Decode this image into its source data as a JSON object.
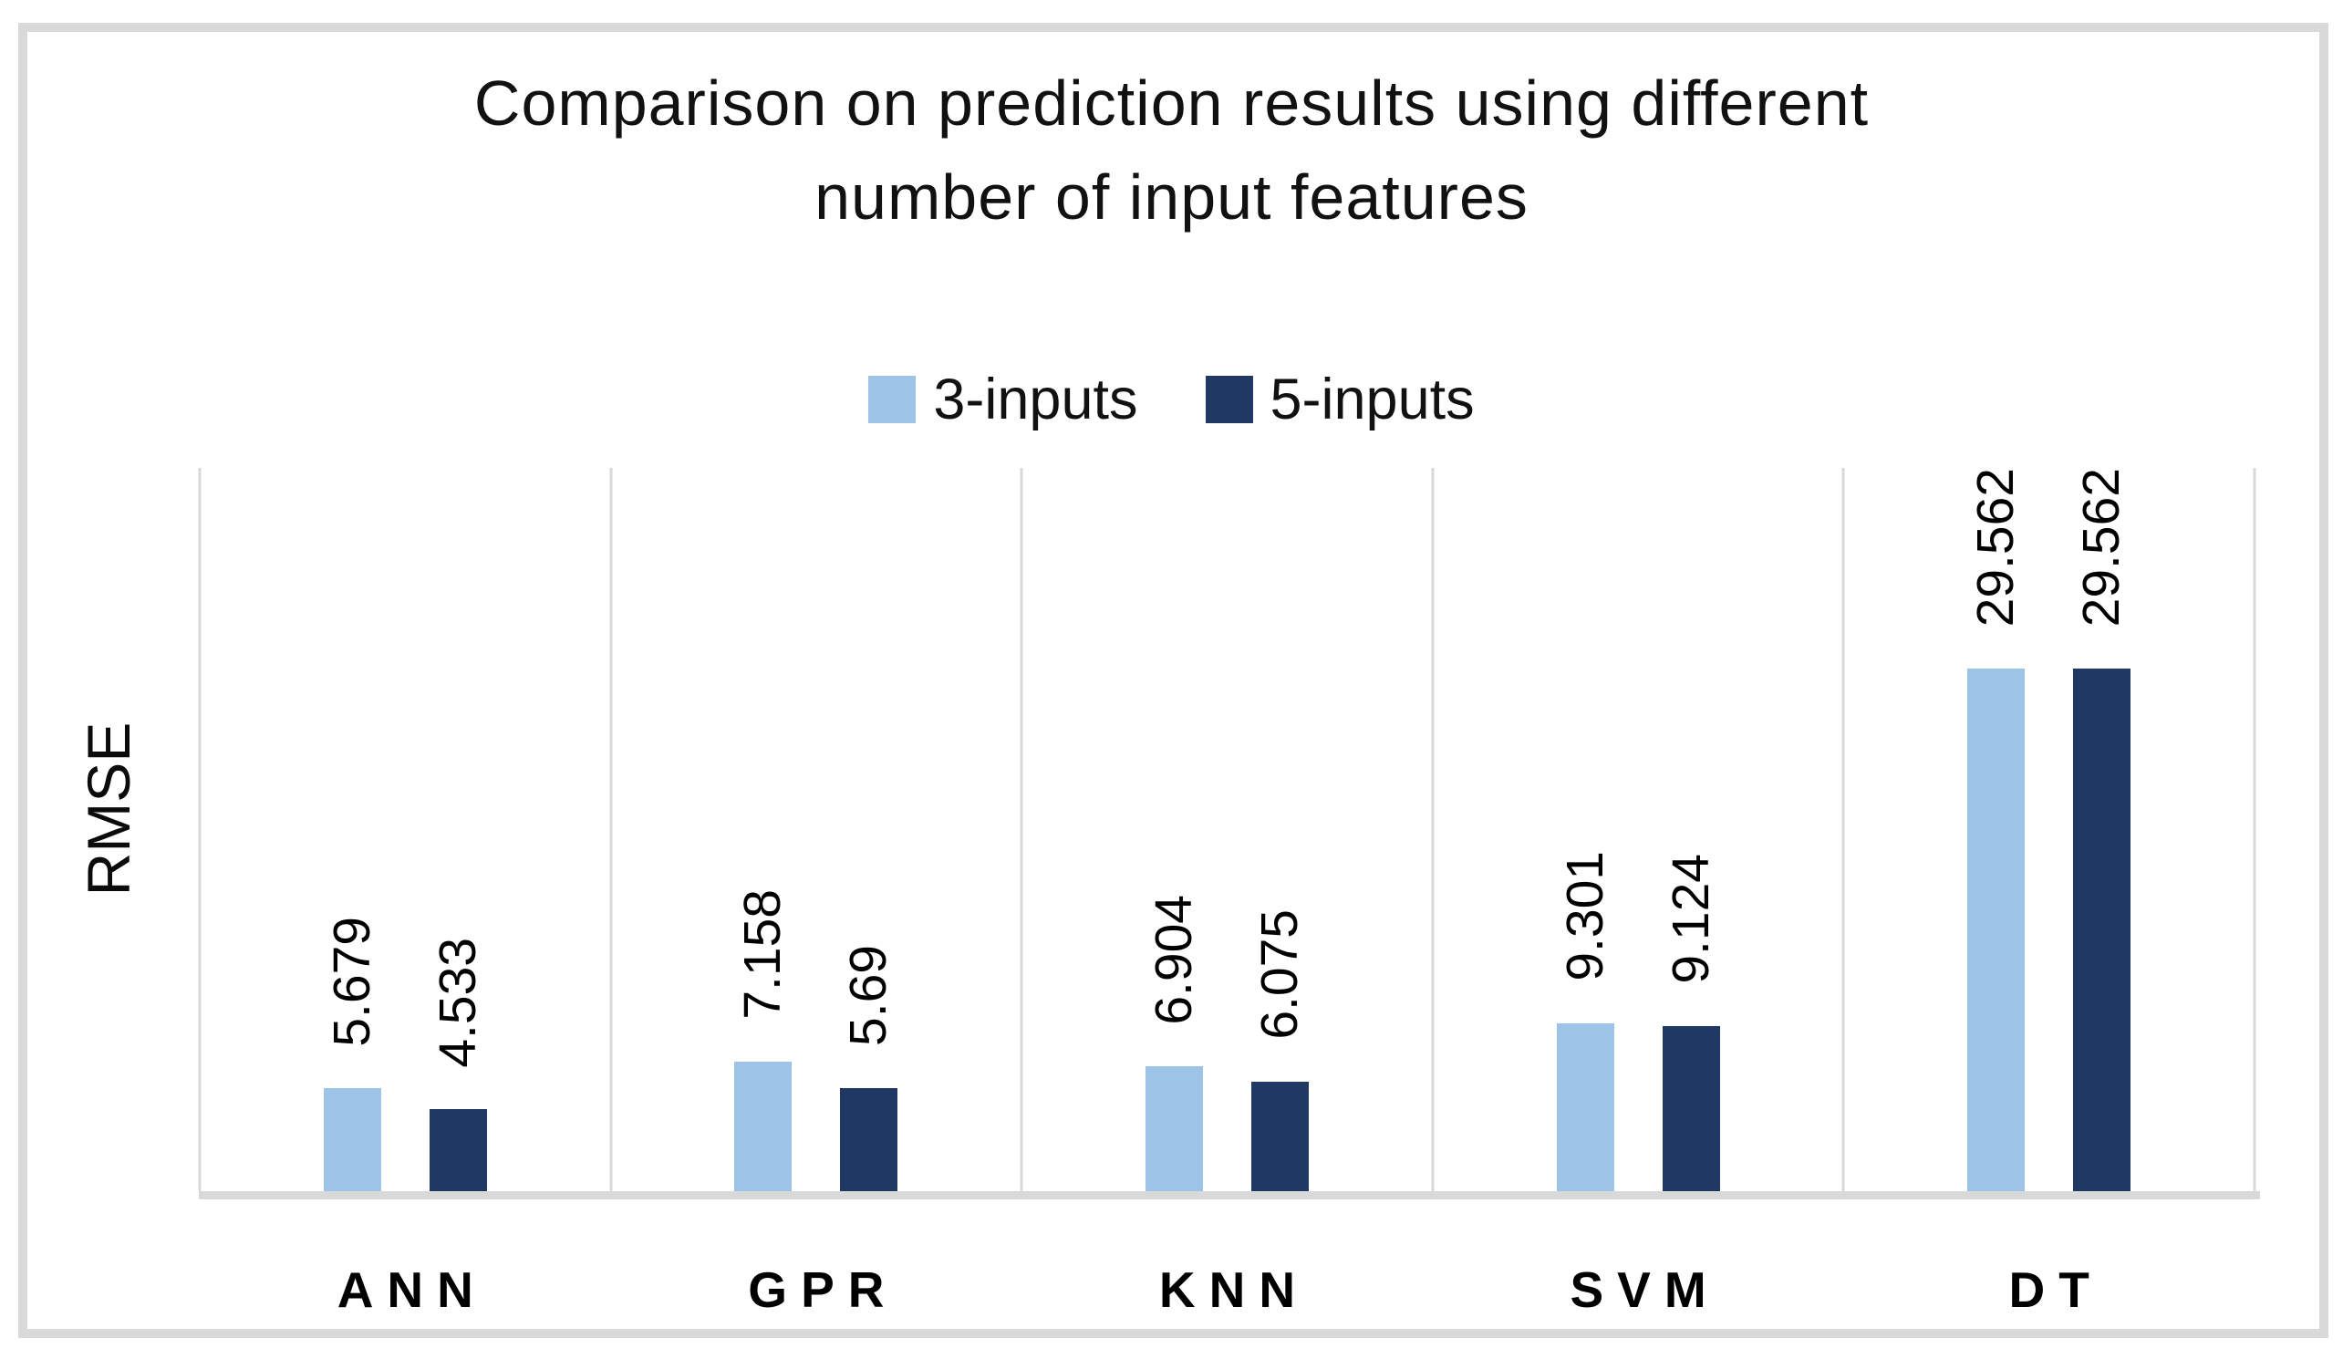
{
  "chart_data": {
    "type": "bar",
    "title": [
      "Comparison on prediction results using different",
      "number of input features"
    ],
    "ylabel": "RMSE",
    "categories": [
      "ANN",
      "GPR",
      "KNN",
      "SVM",
      "DT"
    ],
    "series": [
      {
        "name": "3-inputs",
        "color": "#9DC3E6",
        "values": [
          5.679,
          7.158,
          6.904,
          9.301,
          29.562
        ],
        "labels": [
          "5.679",
          "7.158",
          "6.904",
          "9.301",
          "29.562"
        ]
      },
      {
        "name": "5-inputs",
        "color": "#1F3864",
        "values": [
          4.533,
          5.69,
          6.075,
          9.124,
          29.562
        ],
        "labels": [
          "4.533",
          "5.69",
          "6.075",
          "9.124",
          "29.562"
        ]
      }
    ],
    "ylim": [
      0,
      40
    ],
    "grid": "vertical category separator lines, no horizontal gridlines, no y-axis ticks",
    "grid_color": "#D9D9D9",
    "frame_color": "#D9D9D9",
    "legend_position": "top-center",
    "value_label_rotation": "90deg counterclockwise"
  }
}
